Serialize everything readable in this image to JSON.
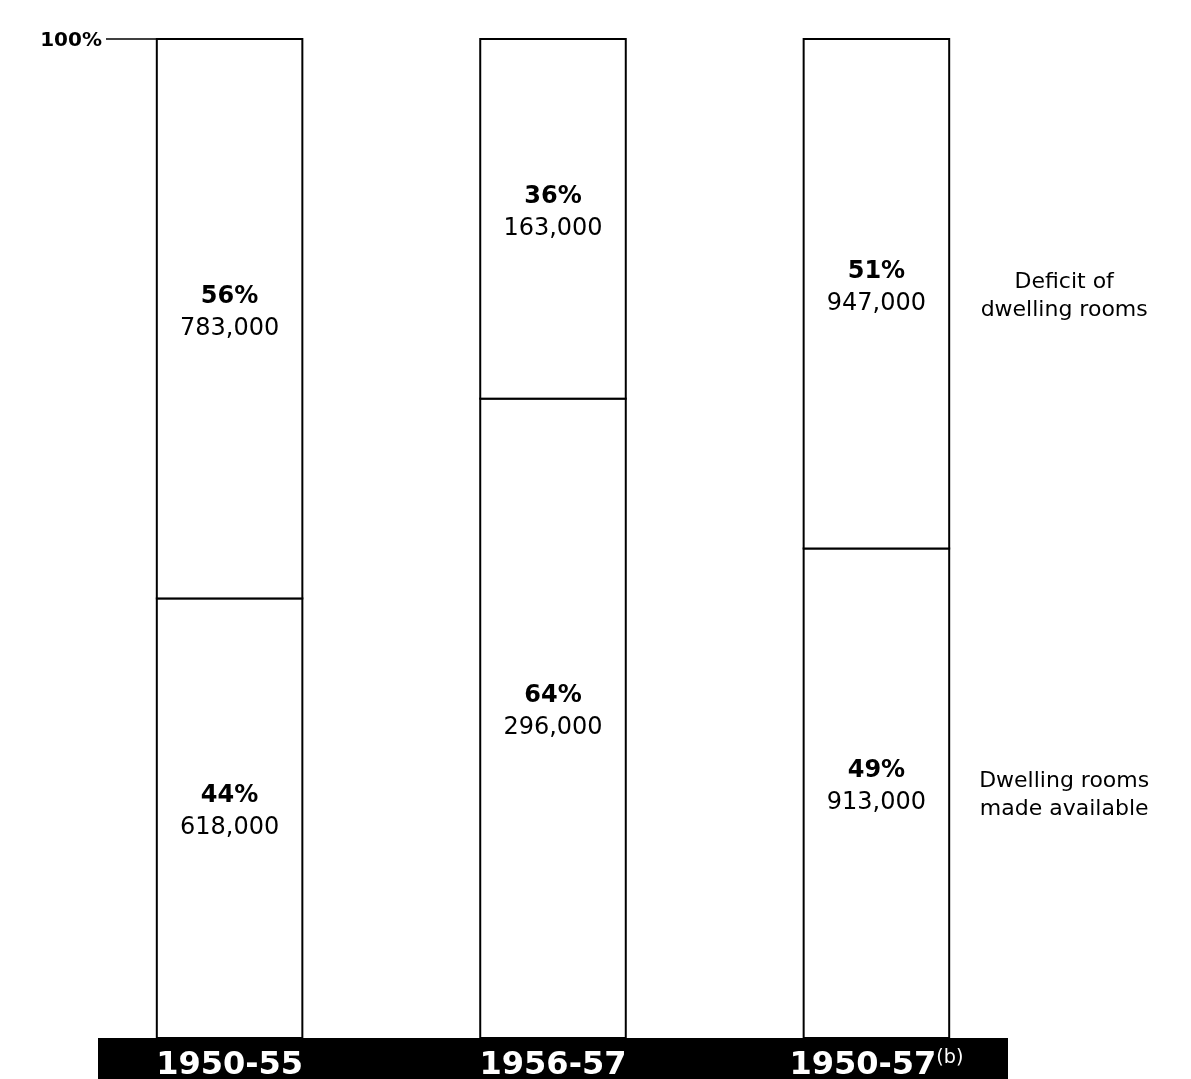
{
  "chart_data": {
    "type": "bar",
    "stacked": true,
    "categories": [
      "1950-55",
      "1956-57",
      "1950-57$^{(b)}$"
    ],
    "ylim": [
      0,
      100
    ],
    "annotations": [
      "100%"
    ],
    "series": [
      {
        "name": "Dwelling rooms made available",
        "color": "#ffffff",
        "values": [
          44,
          64,
          49
        ],
        "value_labels": [
          "44%\n618,000",
          "64%\n296,000",
          "49%\n913,000"
        ]
      },
      {
        "name": "Deficit of dwelling rooms",
        "color": "#ffffff",
        "values": [
          56,
          36,
          51
        ],
        "value_labels": [
          "56%\n783,000",
          "36%\n163,000",
          "51%\n947,000"
        ]
      }
    ]
  }
}
